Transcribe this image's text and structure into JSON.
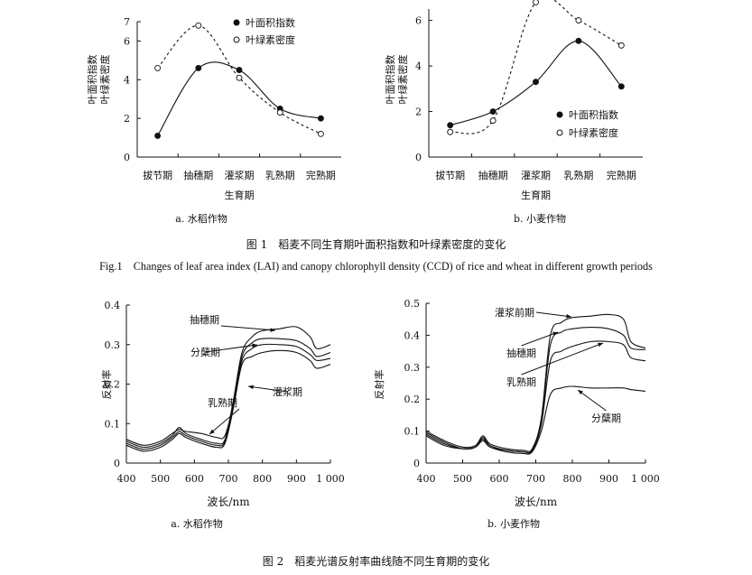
{
  "figure1": {
    "caption_cn": "图 1　稻麦不同生育期叶面积指数和叶绿素密度的变化",
    "caption_en": "Fig.1　Changes of leaf area index (LAI) and canopy chlorophyll density (CCD) of rice and wheat in different growth periods"
  },
  "figure2": {
    "caption_cn": "图 2　稻麦光谱反射率曲线随不同生育期的变化"
  },
  "chart_data": [
    {
      "type": "scatter",
      "subtitle": "a. 水稻作物",
      "xlabel": "生育期",
      "ylabel": [
        "叶面积指数",
        "叶绿素密度"
      ],
      "categories": [
        "拔节期",
        "抽穗期",
        "灌浆期",
        "乳熟期",
        "完熟期"
      ],
      "ylim": [
        0,
        7
      ],
      "yticks": [
        0,
        2,
        4,
        6,
        7
      ],
      "legend_position": "top-right",
      "series": [
        {
          "name": "叶面积指数",
          "marker": "filled-circle",
          "line": "solid",
          "values": [
            1.1,
            4.6,
            4.5,
            2.5,
            2.0
          ]
        },
        {
          "name": "叶绿素密度",
          "marker": "open-circle",
          "line": "dashed",
          "values": [
            4.6,
            6.8,
            4.1,
            2.3,
            1.2
          ]
        }
      ]
    },
    {
      "type": "scatter",
      "subtitle": "b. 小麦作物",
      "xlabel": "生育期",
      "ylabel": [
        "叶面积指数",
        "叶绿素密度"
      ],
      "categories": [
        "拔节期",
        "抽穗期",
        "灌浆期",
        "乳熟期",
        "完熟期"
      ],
      "ylim": [
        0,
        6.5
      ],
      "yticks": [
        0,
        2,
        4,
        6
      ],
      "legend_position": "right",
      "series": [
        {
          "name": "叶面积指数",
          "marker": "filled-circle",
          "line": "solid",
          "values": [
            1.4,
            2.0,
            3.3,
            5.1,
            3.1
          ]
        },
        {
          "name": "叶绿素密度",
          "marker": "open-circle",
          "line": "dashed",
          "values": [
            1.1,
            1.6,
            6.8,
            6.0,
            4.9
          ]
        }
      ]
    },
    {
      "type": "line",
      "subtitle": "a. 水稻作物",
      "xlabel": "波长/nm",
      "ylabel": "反射率",
      "xlim": [
        400,
        1000
      ],
      "xticks": [
        400,
        500,
        600,
        700,
        800,
        900,
        1000
      ],
      "xtick_labels": [
        "400",
        "500",
        "600",
        "700",
        "800",
        "900",
        "1 000"
      ],
      "ylim": [
        0,
        0.4
      ],
      "yticks": [
        0,
        0.1,
        0.2,
        0.3,
        0.4
      ],
      "ytick_labels": [
        "0",
        "0.1",
        "0.2",
        "0.3",
        "0.4"
      ],
      "series": [
        {
          "name": "抽穗期",
          "x": [
            400,
            450,
            500,
            535,
            555,
            575,
            620,
            665,
            690,
            715,
            740,
            770,
            800,
            850,
            900,
            940,
            960,
            1000
          ],
          "y": [
            0.055,
            0.04,
            0.05,
            0.07,
            0.09,
            0.075,
            0.06,
            0.05,
            0.06,
            0.16,
            0.28,
            0.32,
            0.335,
            0.34,
            0.345,
            0.32,
            0.29,
            0.3
          ]
        },
        {
          "name": "分蘖期",
          "x": [
            400,
            450,
            500,
            535,
            555,
            575,
            620,
            665,
            690,
            715,
            740,
            770,
            800,
            850,
            900,
            940,
            960,
            1000
          ],
          "y": [
            0.05,
            0.035,
            0.045,
            0.065,
            0.08,
            0.07,
            0.055,
            0.045,
            0.055,
            0.15,
            0.27,
            0.305,
            0.315,
            0.315,
            0.31,
            0.29,
            0.27,
            0.28
          ]
        },
        {
          "name": "灌浆期",
          "x": [
            400,
            450,
            500,
            535,
            555,
            575,
            620,
            665,
            690,
            715,
            740,
            770,
            800,
            850,
            900,
            940,
            960,
            1000
          ],
          "y": [
            0.045,
            0.03,
            0.04,
            0.06,
            0.075,
            0.065,
            0.05,
            0.04,
            0.05,
            0.14,
            0.25,
            0.27,
            0.28,
            0.285,
            0.28,
            0.26,
            0.24,
            0.25
          ]
        },
        {
          "name": "乳熟期",
          "x": [
            400,
            450,
            500,
            535,
            555,
            575,
            620,
            665,
            690,
            715,
            740,
            770,
            800,
            850,
            900,
            940,
            960,
            1000
          ],
          "y": [
            0.06,
            0.045,
            0.055,
            0.075,
            0.085,
            0.08,
            0.075,
            0.065,
            0.07,
            0.15,
            0.26,
            0.29,
            0.3,
            0.3,
            0.295,
            0.275,
            0.26,
            0.265
          ]
        }
      ]
    },
    {
      "type": "line",
      "subtitle": "b. 小麦作物",
      "xlabel": "波长/nm",
      "ylabel": "反射率",
      "xlim": [
        400,
        1000
      ],
      "xticks": [
        400,
        500,
        600,
        700,
        800,
        900,
        1000
      ],
      "xtick_labels": [
        "400",
        "500",
        "600",
        "700",
        "800",
        "900",
        "1 000"
      ],
      "ylim": [
        0,
        0.5
      ],
      "yticks": [
        0,
        0.1,
        0.2,
        0.3,
        0.4,
        0.5
      ],
      "ytick_labels": [
        "0",
        "0.1",
        "0.2",
        "0.3",
        "0.4",
        "0.5"
      ],
      "series": [
        {
          "name": "灌浆前期",
          "x": [
            400,
            450,
            500,
            535,
            555,
            575,
            620,
            665,
            690,
            715,
            740,
            770,
            800,
            850,
            900,
            940,
            960,
            1000
          ],
          "y": [
            0.1,
            0.07,
            0.05,
            0.055,
            0.085,
            0.06,
            0.045,
            0.04,
            0.045,
            0.14,
            0.4,
            0.44,
            0.455,
            0.46,
            0.465,
            0.45,
            0.38,
            0.36
          ]
        },
        {
          "name": "抽穗期",
          "x": [
            400,
            450,
            500,
            535,
            555,
            575,
            620,
            665,
            690,
            715,
            740,
            770,
            800,
            850,
            900,
            940,
            960,
            1000
          ],
          "y": [
            0.095,
            0.065,
            0.045,
            0.05,
            0.08,
            0.055,
            0.04,
            0.035,
            0.04,
            0.13,
            0.37,
            0.41,
            0.42,
            0.425,
            0.42,
            0.4,
            0.36,
            0.355
          ]
        },
        {
          "name": "乳熟期",
          "x": [
            400,
            450,
            500,
            535,
            555,
            575,
            620,
            665,
            690,
            715,
            740,
            770,
            800,
            850,
            900,
            940,
            960,
            1000
          ],
          "y": [
            0.09,
            0.06,
            0.045,
            0.05,
            0.075,
            0.05,
            0.04,
            0.035,
            0.04,
            0.12,
            0.32,
            0.35,
            0.365,
            0.38,
            0.38,
            0.37,
            0.33,
            0.32
          ]
        },
        {
          "name": "分蘖期",
          "x": [
            400,
            450,
            500,
            535,
            555,
            575,
            620,
            665,
            690,
            715,
            740,
            770,
            800,
            850,
            900,
            940,
            960,
            1000
          ],
          "y": [
            0.085,
            0.055,
            0.045,
            0.05,
            0.07,
            0.05,
            0.035,
            0.03,
            0.035,
            0.1,
            0.215,
            0.235,
            0.24,
            0.235,
            0.235,
            0.235,
            0.23,
            0.225
          ]
        }
      ]
    }
  ]
}
